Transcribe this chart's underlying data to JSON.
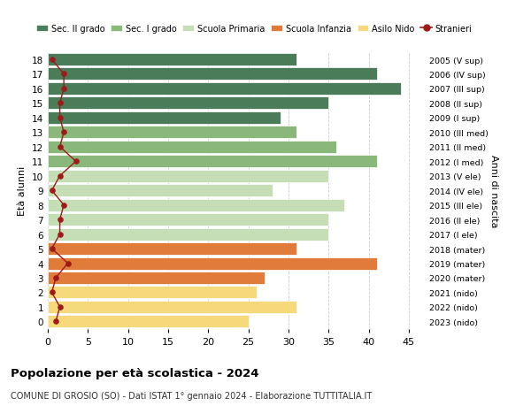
{
  "ages": [
    18,
    17,
    16,
    15,
    14,
    13,
    12,
    11,
    10,
    9,
    8,
    7,
    6,
    5,
    4,
    3,
    2,
    1,
    0
  ],
  "bar_values": [
    31,
    41,
    44,
    35,
    29,
    31,
    36,
    41,
    35,
    28,
    37,
    35,
    35,
    31,
    41,
    27,
    26,
    31,
    25
  ],
  "bar_colors": [
    "#4a7c59",
    "#4a7c59",
    "#4a7c59",
    "#4a7c59",
    "#4a7c59",
    "#8ab87a",
    "#8ab87a",
    "#8ab87a",
    "#c5deb5",
    "#c5deb5",
    "#c5deb5",
    "#c5deb5",
    "#c5deb5",
    "#e07b3a",
    "#e07b3a",
    "#e07b3a",
    "#f5d97a",
    "#f5d97a",
    "#f5d97a"
  ],
  "right_labels": [
    "2005 (V sup)",
    "2006 (IV sup)",
    "2007 (III sup)",
    "2008 (II sup)",
    "2009 (I sup)",
    "2010 (III med)",
    "2011 (II med)",
    "2012 (I med)",
    "2013 (V ele)",
    "2014 (IV ele)",
    "2015 (III ele)",
    "2016 (II ele)",
    "2017 (I ele)",
    "2018 (mater)",
    "2019 (mater)",
    "2020 (mater)",
    "2021 (nido)",
    "2022 (nido)",
    "2023 (nido)"
  ],
  "stranieri_x": [
    0.5,
    2.0,
    2.0,
    1.5,
    1.5,
    2.0,
    1.5,
    3.5,
    1.5,
    0.5,
    2.0,
    1.5,
    1.5,
    0.5,
    2.5,
    1.0,
    0.5,
    1.5,
    1.0
  ],
  "legend_labels": [
    "Sec. II grado",
    "Sec. I grado",
    "Scuola Primaria",
    "Scuola Infanzia",
    "Asilo Nido",
    "Stranieri"
  ],
  "legend_colors": [
    "#4a7c59",
    "#8ab87a",
    "#c5deb5",
    "#e07b3a",
    "#f5d97a",
    "#9e1a1a"
  ],
  "ylabel": "Età alunni",
  "right_axis_label": "Anni di nascita",
  "title_bold": "Popolazione per età scolastica - 2024",
  "subtitle": "COMUNE DI GROSIO (SO) - Dati ISTAT 1° gennaio 2024 - Elaborazione TUTTITALIA.IT",
  "xlim": [
    0,
    47
  ],
  "ylim": [
    -0.5,
    18.5
  ],
  "xticks": [
    0,
    5,
    10,
    15,
    20,
    25,
    30,
    35,
    40,
    45
  ],
  "bg_color": "#ffffff"
}
